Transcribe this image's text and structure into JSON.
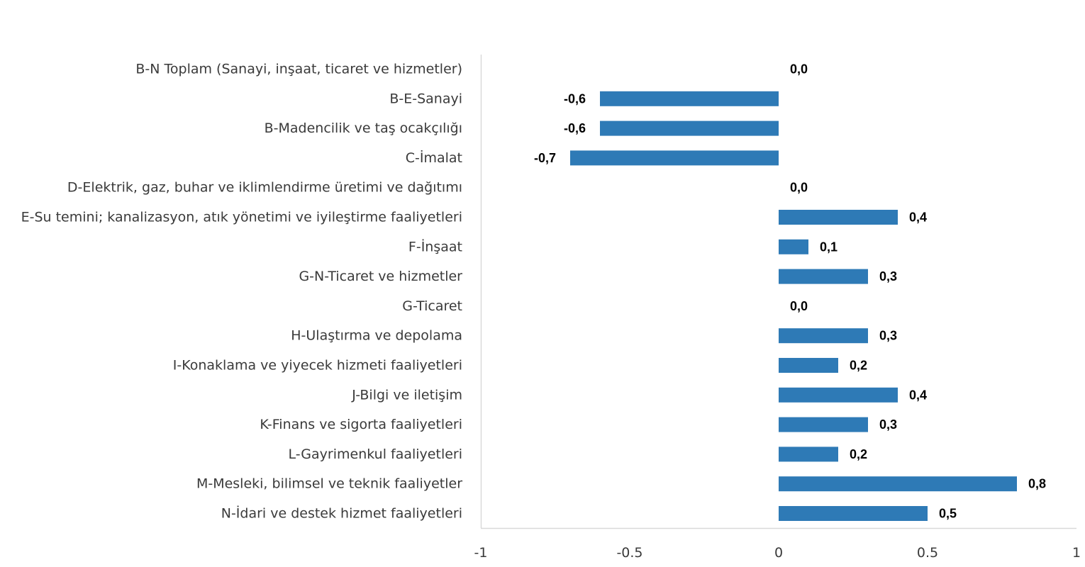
{
  "chart_data": {
    "type": "bar",
    "orientation": "horizontal",
    "categories": [
      "B-N Toplam (Sanayi, inşaat, ticaret ve hizmetler)",
      "B-E-Sanayi",
      "B-Madencilik ve taş ocakçılığı",
      "C-İmalat",
      "D-Elektrik, gaz, buhar ve iklimlendirme üretimi ve dağıtımı",
      "E-Su temini; kanalizasyon, atık yönetimi ve iyileştirme faaliyetleri",
      "F-İnşaat",
      "G-N-Ticaret ve hizmetler",
      "G-Ticaret",
      "H-Ulaştırma ve depolama",
      "I-Konaklama ve yiyecek hizmeti faaliyetleri",
      "J-Bilgi ve iletişim",
      "K-Finans ve sigorta faaliyetleri",
      "L-Gayrimenkul faaliyetleri",
      "M-Mesleki, bilimsel ve teknik faaliyetler",
      "N-İdari ve destek hizmet faaliyetleri"
    ],
    "values": [
      0.0,
      -0.6,
      -0.6,
      -0.7,
      0.0,
      0.4,
      0.1,
      0.3,
      0.0,
      0.3,
      0.2,
      0.4,
      0.3,
      0.2,
      0.8,
      0.5
    ],
    "data_labels": [
      "0,0",
      "-0,6",
      "-0,6",
      "-0,7",
      "0,0",
      "0,4",
      "0,1",
      "0,3",
      "0,0",
      "0,3",
      "0,2",
      "0,4",
      "0,3",
      "0,2",
      "0,8",
      "0,5"
    ],
    "xlim": [
      -1,
      1
    ],
    "x_ticks": [
      -1,
      -0.5,
      0,
      0.5,
      1
    ],
    "x_tick_labels": [
      "-1",
      "-0.5",
      "0",
      "0.5",
      "1"
    ],
    "title": "",
    "xlabel": "",
    "ylabel": "",
    "grid": false,
    "legend": "none",
    "bar_color": "#2e7ab6",
    "axis_color": "#d9d9d9"
  }
}
